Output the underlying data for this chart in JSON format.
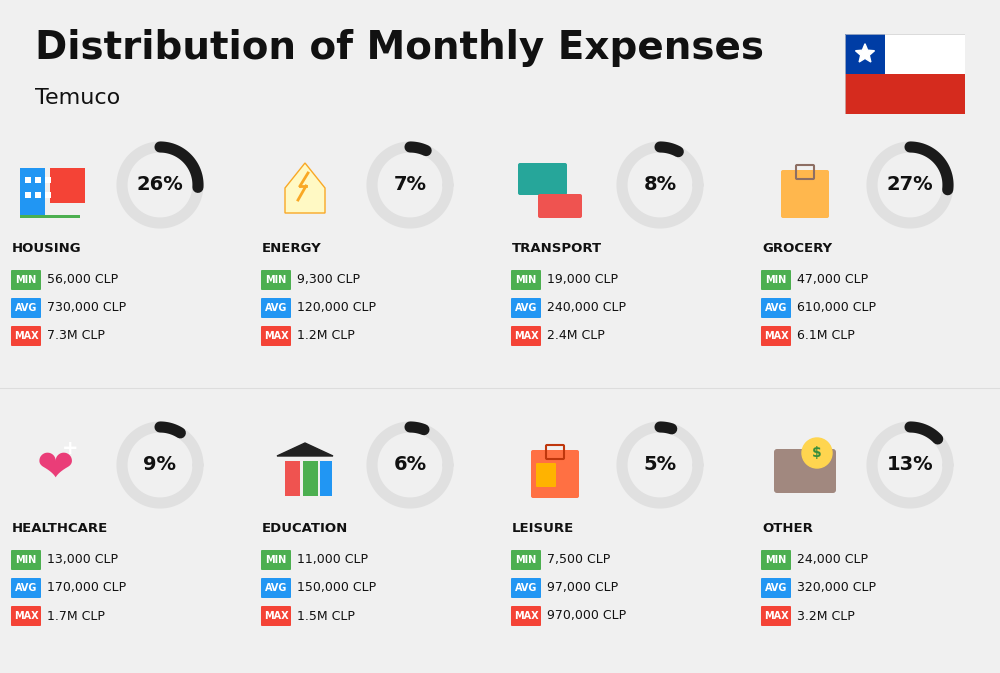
{
  "title": "Distribution of Monthly Expenses",
  "subtitle": "Temuco",
  "background_color": "#f0f0f0",
  "categories": [
    {
      "name": "HOUSING",
      "pct": 26,
      "min_val": "56,000 CLP",
      "avg_val": "730,000 CLP",
      "max_val": "7.3M CLP",
      "icon_color": "#2196F3",
      "col": 0,
      "row": 0
    },
    {
      "name": "ENERGY",
      "pct": 7,
      "min_val": "9,300 CLP",
      "avg_val": "120,000 CLP",
      "max_val": "1.2M CLP",
      "icon_color": "#FF9800",
      "col": 1,
      "row": 0
    },
    {
      "name": "TRANSPORT",
      "pct": 8,
      "min_val": "19,000 CLP",
      "avg_val": "240,000 CLP",
      "max_val": "2.4M CLP",
      "icon_color": "#4CAF50",
      "col": 2,
      "row": 0
    },
    {
      "name": "GROCERY",
      "pct": 27,
      "min_val": "47,000 CLP",
      "avg_val": "610,000 CLP",
      "max_val": "6.1M CLP",
      "icon_color": "#F44336",
      "col": 3,
      "row": 0
    },
    {
      "name": "HEALTHCARE",
      "pct": 9,
      "min_val": "13,000 CLP",
      "avg_val": "170,000 CLP",
      "max_val": "1.7M CLP",
      "icon_color": "#E91E63",
      "col": 0,
      "row": 1
    },
    {
      "name": "EDUCATION",
      "pct": 6,
      "min_val": "11,000 CLP",
      "avg_val": "150,000 CLP",
      "max_val": "1.5M CLP",
      "icon_color": "#3F51B5",
      "col": 1,
      "row": 1
    },
    {
      "name": "LEISURE",
      "pct": 5,
      "min_val": "7,500 CLP",
      "avg_val": "97,000 CLP",
      "max_val": "970,000 CLP",
      "icon_color": "#FF5722",
      "col": 2,
      "row": 1
    },
    {
      "name": "OTHER",
      "pct": 13,
      "min_val": "24,000 CLP",
      "avg_val": "320,000 CLP",
      "max_val": "3.2M CLP",
      "icon_color": "#795548",
      "col": 3,
      "row": 1
    }
  ],
  "min_color": "#4CAF50",
  "avg_color": "#2196F3",
  "max_color": "#F44336",
  "label_text_color": "#ffffff",
  "circle_bg": "#e0e0e0",
  "circle_fg": "#1a1a1a",
  "text_color": "#111111"
}
